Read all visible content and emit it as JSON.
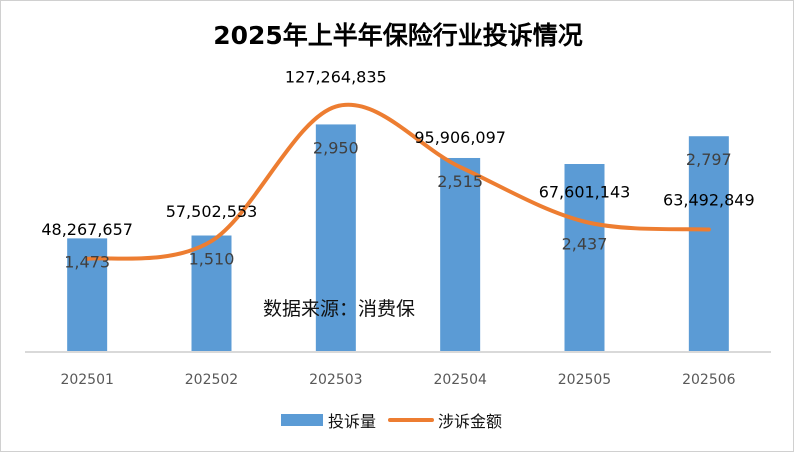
{
  "chart_data": {
    "type": "bar+line",
    "title": "2025年上半年保险行业投诉情况",
    "annotation": "数据来源：消费保",
    "categories": [
      "202501",
      "202502",
      "202503",
      "202504",
      "202505",
      "202506"
    ],
    "series": [
      {
        "name": "投诉量",
        "type": "bar",
        "axis": "primary",
        "values": [
          1473,
          1510,
          2950,
          2515,
          2437,
          2797
        ],
        "labels": [
          "1,473",
          "1,510",
          "2,950",
          "2,515",
          "2,437",
          "2,797"
        ],
        "color": "#5B9BD5"
      },
      {
        "name": "涉诉金额",
        "type": "line",
        "smooth": true,
        "axis": "secondary",
        "values": [
          48267657,
          57502553,
          127264835,
          95906097,
          67601143,
          63492849
        ],
        "labels": [
          "48,267,657",
          "57,502,553",
          "127,264,835",
          "95,906,097",
          "67,601,143",
          "63,492,849"
        ],
        "color": "#ED7D31"
      }
    ],
    "primary_ylim": [
      0,
      3500
    ],
    "secondary_ylim": [
      0,
      140000000
    ],
    "axes_visible": false,
    "grid": false,
    "legend": "bottom"
  }
}
